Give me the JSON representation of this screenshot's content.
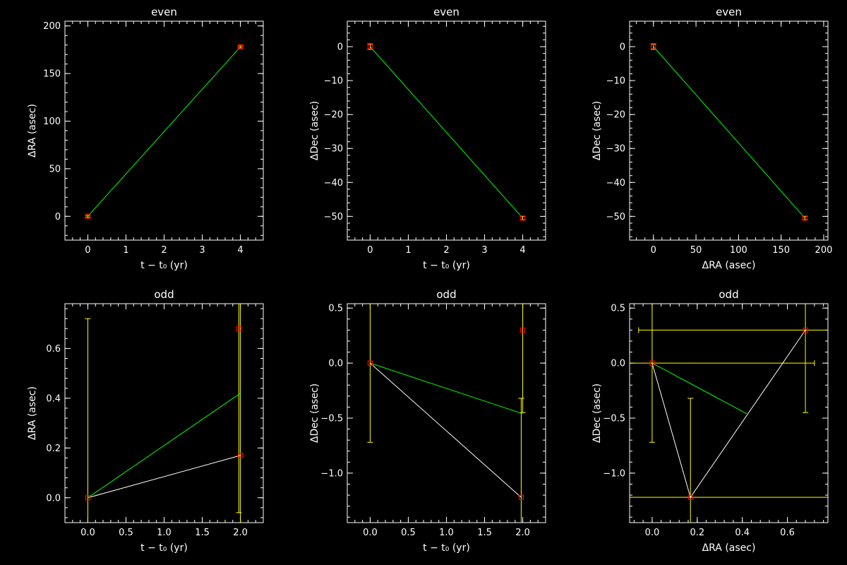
{
  "colors": {
    "background": "#000000",
    "axes": "#ffffff",
    "fit_line": "#00ff00",
    "data_line": "#ffffff",
    "error_bar": "#ffff00",
    "marker": "#ff0000"
  },
  "chart_data": [
    {
      "type": "line",
      "title": "even",
      "xlabel": "t − t₀ (yr)",
      "ylabel": "ΔRA (asec)",
      "xlim": [
        -0.6,
        4.6
      ],
      "ylim": [
        -25,
        205
      ],
      "xticks": [
        0,
        1,
        2,
        3,
        4
      ],
      "xtick_labels": [
        "0",
        "1",
        "2",
        "3",
        "4"
      ],
      "yticks": [
        0,
        50,
        100,
        150,
        200
      ],
      "ytick_labels": [
        "0",
        "50",
        "100",
        "150",
        "200"
      ],
      "points": [
        {
          "x": 0,
          "y": 0,
          "xerr": 0,
          "yerr": 1
        },
        {
          "x": 4,
          "y": 178,
          "xerr": 0,
          "yerr": 1
        }
      ],
      "fit": [
        [
          0,
          0
        ],
        [
          4,
          178
        ]
      ]
    },
    {
      "type": "line",
      "title": "even",
      "xlabel": "t − t₀ (yr)",
      "ylabel": "ΔDec (asec)",
      "xlim": [
        -0.6,
        4.6
      ],
      "ylim": [
        -57,
        7.5
      ],
      "xticks": [
        0,
        1,
        2,
        3,
        4
      ],
      "xtick_labels": [
        "0",
        "1",
        "2",
        "3",
        "4"
      ],
      "yticks": [
        0,
        -10,
        -20,
        -30,
        -40,
        -50
      ],
      "ytick_labels": [
        "0",
        "−10",
        "−20",
        "−30",
        "−40",
        "−50"
      ],
      "points": [
        {
          "x": 0,
          "y": 0,
          "xerr": 0,
          "yerr": 0.8
        },
        {
          "x": 4,
          "y": -50.5,
          "xerr": 0,
          "yerr": 0.5
        }
      ],
      "fit": [
        [
          0,
          0
        ],
        [
          4,
          -50.5
        ]
      ]
    },
    {
      "type": "line",
      "title": "even",
      "xlabel": "ΔRA (asec)",
      "ylabel": "ΔDec (asec)",
      "xlim": [
        -28,
        205
      ],
      "ylim": [
        -57,
        7.5
      ],
      "xticks": [
        0,
        50,
        100,
        150,
        200
      ],
      "xtick_labels": [
        "0",
        "50",
        "100",
        "150",
        "200"
      ],
      "yticks": [
        0,
        -10,
        -20,
        -30,
        -40,
        -50
      ],
      "ytick_labels": [
        "0",
        "−10",
        "−20",
        "−30",
        "−40",
        "−50"
      ],
      "points": [
        {
          "x": 0,
          "y": 0,
          "xerr": 0,
          "yerr": 0.8
        },
        {
          "x": 178,
          "y": -50.5,
          "xerr": 0,
          "yerr": 0.5
        }
      ],
      "fit": [
        [
          0,
          0
        ],
        [
          178,
          -50.5
        ]
      ]
    },
    {
      "type": "line",
      "title": "odd",
      "xlabel": "t − t₀ (yr)",
      "ylabel": "ΔRA (asec)",
      "xlim": [
        -0.3,
        2.3
      ],
      "ylim": [
        -0.1,
        0.78
      ],
      "xticks": [
        0,
        0.5,
        1,
        1.5,
        2
      ],
      "xtick_labels": [
        "0.0",
        "0.5",
        "1.0",
        "1.5",
        "2.0"
      ],
      "yticks": [
        0,
        0.2,
        0.4,
        0.6
      ],
      "ytick_labels": [
        "0.0",
        "0.2",
        "0.4",
        "0.6"
      ],
      "points": [
        {
          "x": 0,
          "y": 0,
          "xerr": 0,
          "yerr": 0.72
        },
        {
          "x": 1.98,
          "y": 0.68,
          "xerr": 0,
          "yerr": 0.74
        },
        {
          "x": 2.0,
          "y": 0.17,
          "xerr": 0,
          "yerr": 0.75
        }
      ],
      "data_line": [
        [
          0,
          0
        ],
        [
          2.0,
          0.17
        ]
      ],
      "fit": [
        [
          0,
          0
        ],
        [
          2.0,
          0.42
        ]
      ]
    },
    {
      "type": "line",
      "title": "odd",
      "xlabel": "t − t₀ (yr)",
      "ylabel": "ΔDec (asec)",
      "xlim": [
        -0.3,
        2.3
      ],
      "ylim": [
        -1.45,
        0.54
      ],
      "xticks": [
        0,
        0.5,
        1,
        1.5,
        2
      ],
      "xtick_labels": [
        "0.0",
        "0.5",
        "1.0",
        "1.5",
        "2.0"
      ],
      "yticks": [
        0.5,
        0,
        -0.5,
        -1.0
      ],
      "ytick_labels": [
        "0.5",
        "0.0",
        "−0.5",
        "−1.0"
      ],
      "points": [
        {
          "x": 0,
          "y": 0,
          "xerr": 0,
          "yerr": 0.72
        },
        {
          "x": 2.0,
          "y": 0.3,
          "xerr": 0,
          "yerr": 0.75
        },
        {
          "x": 1.98,
          "y": -1.22,
          "xerr": 0,
          "yerr": 0.9
        }
      ],
      "data_line": [
        [
          0,
          0
        ],
        [
          1.98,
          -1.22
        ]
      ],
      "fit": [
        [
          0,
          0
        ],
        [
          2.0,
          -0.46
        ]
      ]
    },
    {
      "type": "line",
      "title": "odd",
      "xlabel": "ΔRA (asec)",
      "ylabel": "ΔDec (asec)",
      "xlim": [
        -0.1,
        0.78
      ],
      "ylim": [
        -1.45,
        0.54
      ],
      "xticks": [
        0,
        0.2,
        0.4,
        0.6
      ],
      "xtick_labels": [
        "0.0",
        "0.2",
        "0.4",
        "0.6"
      ],
      "yticks": [
        0.5,
        0,
        -0.5,
        -1.0
      ],
      "ytick_labels": [
        "0.5",
        "0.0",
        "−0.5",
        "−1.0"
      ],
      "points": [
        {
          "x": 0,
          "y": 0,
          "xerr": 0.72,
          "yerr": 0.72
        },
        {
          "x": 0.17,
          "y": -1.22,
          "xerr": 0.75,
          "yerr": 0.9
        },
        {
          "x": 0.68,
          "y": 0.3,
          "xerr": 0.74,
          "yerr": 0.75
        }
      ],
      "data_line": [
        [
          0,
          0
        ],
        [
          0.17,
          -1.22
        ],
        [
          0.68,
          0.3
        ]
      ],
      "fit": [
        [
          0,
          0
        ],
        [
          0.42,
          -0.46
        ]
      ]
    }
  ]
}
